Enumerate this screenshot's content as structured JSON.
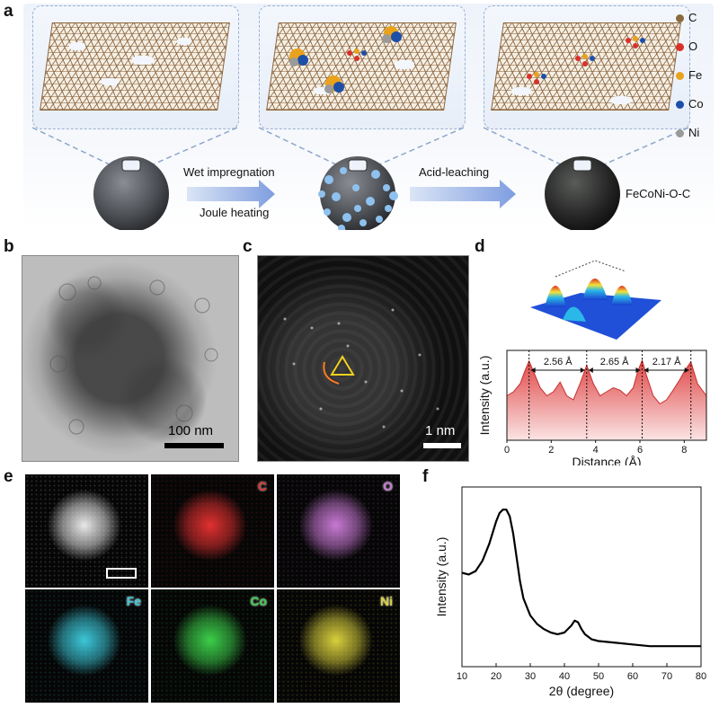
{
  "figure": {
    "panels": [
      "a",
      "b",
      "c",
      "d",
      "e",
      "f"
    ]
  },
  "panel_a": {
    "step1_top": "Wet impregnation",
    "step1_bottom": "Joule heating",
    "step2_top": "Acid-leaching",
    "product_label": "FeCoNi-O-C",
    "legend": [
      {
        "label": "C",
        "color": "#8b6b3d"
      },
      {
        "label": "O",
        "color": "#d9312b"
      },
      {
        "label": "Fe",
        "color": "#e8a21c"
      },
      {
        "label": "Co",
        "color": "#1c4fa8"
      },
      {
        "label": "Ni",
        "color": "#9a9a9a"
      }
    ]
  },
  "panel_b": {
    "scalebar": "100 nm"
  },
  "panel_c": {
    "scalebar": "1 nm"
  },
  "panel_d": {
    "ylabel": "Intensity (a.u.)",
    "xlabel": "Distance (Å)",
    "distances": [
      "2.56 Å",
      "2.65 Å",
      "2.17 Å"
    ]
  },
  "panel_e": {
    "maps": [
      {
        "label": "",
        "color": "#e8e8e8"
      },
      {
        "label": "C",
        "color": "#e03030"
      },
      {
        "label": "O",
        "color": "#c879d4"
      },
      {
        "label": "Fe",
        "color": "#3cc7d8"
      },
      {
        "label": "Co",
        "color": "#3ccf4a"
      },
      {
        "label": "Ni",
        "color": "#d8cf3c"
      }
    ]
  },
  "chart_data": [
    {
      "type": "area",
      "panel": "d",
      "xlabel": "Distance (Å)",
      "ylabel": "Intensity (a.u.)",
      "xlim": [
        0,
        9
      ],
      "xticks": [
        0,
        2,
        4,
        6,
        8
      ],
      "peak_positions": [
        1.0,
        3.6,
        6.1,
        8.3
      ],
      "annotations": [
        "2.56 Å",
        "2.65 Å",
        "2.17 Å"
      ],
      "x": [
        0,
        0.3,
        0.6,
        0.8,
        1.0,
        1.2,
        1.5,
        1.8,
        2.1,
        2.4,
        2.7,
        3.0,
        3.3,
        3.6,
        3.9,
        4.2,
        4.5,
        4.8,
        5.1,
        5.4,
        5.7,
        5.9,
        6.1,
        6.3,
        6.6,
        6.9,
        7.2,
        7.5,
        7.8,
        8.0,
        8.3,
        8.6,
        9.0
      ],
      "y": [
        0.55,
        0.6,
        0.7,
        0.85,
        0.98,
        0.85,
        0.65,
        0.55,
        0.6,
        0.72,
        0.55,
        0.5,
        0.7,
        0.93,
        0.7,
        0.55,
        0.6,
        0.65,
        0.62,
        0.55,
        0.65,
        0.85,
        0.99,
        0.8,
        0.55,
        0.45,
        0.5,
        0.62,
        0.75,
        0.85,
        0.97,
        0.7,
        0.55
      ]
    },
    {
      "type": "line",
      "panel": "f",
      "xlabel": "2θ (degree)",
      "ylabel": "Intensity (a.u.)",
      "xlim": [
        10,
        80
      ],
      "xticks": [
        10,
        20,
        30,
        40,
        50,
        60,
        70,
        80
      ],
      "x": [
        10,
        12,
        14,
        16,
        18,
        20,
        21,
        22,
        23,
        24,
        25,
        26,
        27,
        28,
        30,
        32,
        34,
        36,
        38,
        40,
        42,
        43,
        44,
        45,
        46,
        48,
        50,
        55,
        60,
        65,
        70,
        75,
        80
      ],
      "y": [
        0.55,
        0.54,
        0.56,
        0.62,
        0.72,
        0.85,
        0.9,
        0.92,
        0.92,
        0.88,
        0.78,
        0.64,
        0.5,
        0.4,
        0.3,
        0.25,
        0.22,
        0.2,
        0.19,
        0.2,
        0.24,
        0.27,
        0.26,
        0.22,
        0.19,
        0.16,
        0.15,
        0.14,
        0.13,
        0.12,
        0.12,
        0.12,
        0.12
      ]
    }
  ]
}
